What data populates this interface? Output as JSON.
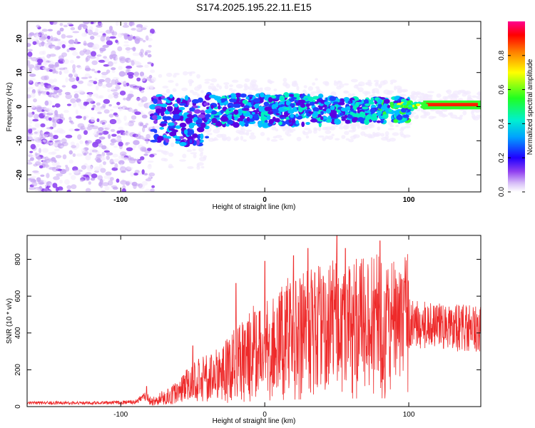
{
  "title": "S174.2025.195.22.11.E15",
  "colors": {
    "snr_line": "#ee2a2a",
    "spec_low": "#b080f0",
    "spec_mid": "#5a00e0",
    "spec_high": "#00e0ff"
  },
  "chart_data": [
    {
      "type": "heatmap",
      "title": "S174.2025.195.22.11.E15",
      "xlabel": "Height of straight line (km)",
      "ylabel": "Frequency (Hz)",
      "xlim": [
        -165,
        150
      ],
      "ylim": [
        -25,
        25
      ],
      "x_ticks": [
        -100,
        0,
        100
      ],
      "x_tick_labels": [
        "-100",
        "0",
        "100"
      ],
      "y_ticks": [
        -20,
        -10,
        0,
        10,
        20
      ],
      "y_tick_labels": [
        "-20",
        "-10",
        "0",
        "10",
        "20"
      ],
      "colorbar": {
        "label": "Normalized spectral amplitude",
        "range": [
          0,
          1
        ],
        "ticks": [
          0,
          0.2,
          0.4,
          0.6,
          0.8
        ],
        "tick_labels": [
          "0.0",
          "0.2",
          "0.4",
          "0.6",
          "0.8"
        ],
        "colormap": "rainbow (white-purple-blue-cyan-green-yellow-red-magenta)"
      },
      "features": [
        {
          "x_range": [
            -165,
            -80
          ],
          "y_range": [
            -25,
            25
          ],
          "description": "diffuse noise",
          "amplitude": 0.05
        },
        {
          "x_range": [
            -80,
            -40
          ],
          "y_center": -4,
          "spread": 8,
          "amplitude": 0.25
        },
        {
          "x_range": [
            -40,
            100
          ],
          "y_center": -1,
          "spread": 5,
          "amplitude": 0.3
        },
        {
          "x_range": [
            100,
            150
          ],
          "y_center": 0.5,
          "spread": 1.5,
          "amplitude": 0.85
        }
      ]
    },
    {
      "type": "line",
      "xlabel": "Height of straight line (km)",
      "ylabel": "SNR (10 * v/v)",
      "xlim": [
        -165,
        150
      ],
      "ylim": [
        0,
        930
      ],
      "x_ticks": [
        -100,
        0,
        100
      ],
      "x_tick_labels": [
        "-100",
        "0",
        "100"
      ],
      "y_ticks": [
        0,
        200,
        400,
        600,
        800
      ],
      "y_tick_labels": [
        "0",
        "200",
        "400",
        "600",
        "800"
      ],
      "series": [
        {
          "x": [
            -165,
            -140,
            -120,
            -100,
            -90,
            -82,
            -80,
            -75,
            -60,
            -50,
            -40,
            -30,
            -20,
            -10,
            0,
            10,
            20,
            30,
            40,
            50,
            60,
            70,
            80,
            90,
            100,
            110,
            120,
            130,
            140,
            150
          ],
          "y": [
            20,
            20,
            20,
            22,
            25,
            60,
            30,
            35,
            80,
            130,
            160,
            180,
            230,
            280,
            320,
            360,
            380,
            400,
            420,
            430,
            440,
            445,
            450,
            440,
            450,
            440,
            435,
            430,
            425,
            420
          ],
          "peaks": [
            [
              -82,
              110
            ],
            [
              -50,
              330
            ],
            [
              -20,
              670
            ],
            [
              0,
              790
            ],
            [
              20,
              820
            ],
            [
              30,
              860
            ],
            [
              50,
              930
            ],
            [
              56,
              860
            ],
            [
              80,
              900
            ]
          ]
        }
      ]
    }
  ]
}
